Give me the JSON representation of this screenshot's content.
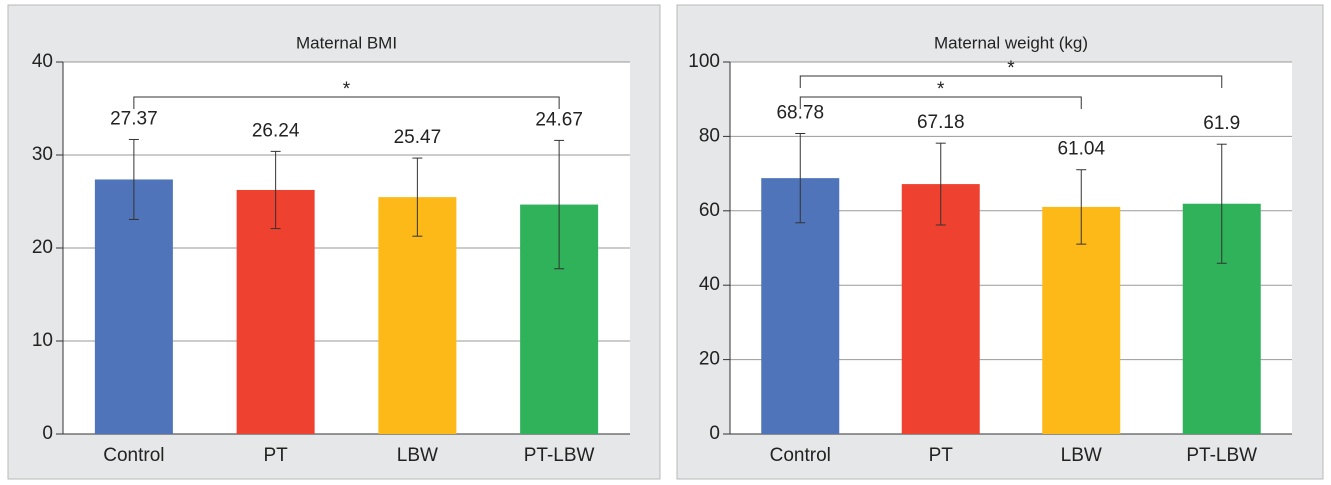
{
  "chart_data": [
    {
      "type": "bar",
      "title": "Maternal BMI",
      "categories": [
        "Control",
        "PT",
        "LBW",
        "PT-LBW"
      ],
      "values": [
        27.37,
        26.24,
        25.47,
        24.67
      ],
      "errors": [
        4.3,
        4.15,
        4.2,
        6.9
      ],
      "colors": [
        "#4f74b9",
        "#ef4130",
        "#fcb918",
        "#2fb25a"
      ],
      "ylim": [
        0,
        40
      ],
      "yticks": [
        0,
        10,
        20,
        30,
        40
      ],
      "grid": true,
      "annotations": [
        {
          "text": "*",
          "from": "Control",
          "to": "PT-LBW"
        }
      ]
    },
    {
      "type": "bar",
      "title": "Maternal weight (kg)",
      "categories": [
        "Control",
        "PT",
        "LBW",
        "PT-LBW"
      ],
      "values": [
        68.78,
        67.18,
        61.04,
        61.9
      ],
      "errors": [
        12,
        11,
        10,
        16
      ],
      "colors": [
        "#4f74b9",
        "#ef4130",
        "#fcb918",
        "#2fb25a"
      ],
      "ylim": [
        0,
        100
      ],
      "yticks": [
        0,
        20,
        40,
        60,
        80,
        100
      ],
      "grid": true,
      "annotations": [
        {
          "text": "*",
          "from": "Control",
          "to": "LBW"
        },
        {
          "text": "*",
          "from": "Control",
          "to": "PT-LBW"
        }
      ]
    }
  ]
}
